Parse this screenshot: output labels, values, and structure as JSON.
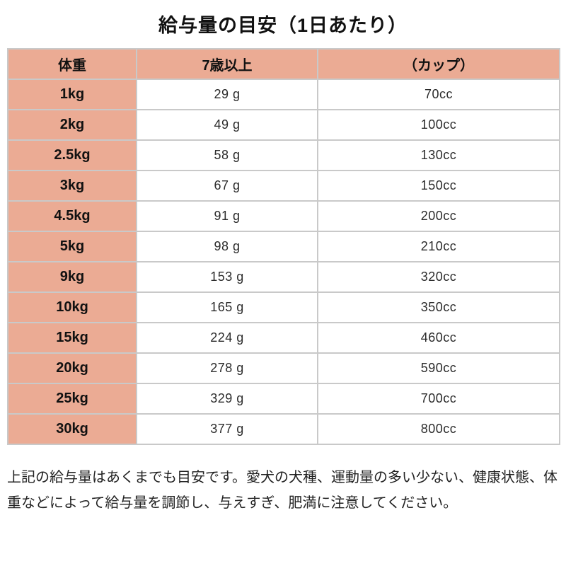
{
  "title": "給与量の目安（1日あたり）",
  "table": {
    "headers": [
      "体重",
      "7歳以上",
      "（カップ）"
    ],
    "rows": [
      {
        "weight": "1kg",
        "grams": "29 g",
        "cup": "70cc"
      },
      {
        "weight": "2kg",
        "grams": "49 g",
        "cup": "100cc"
      },
      {
        "weight": "2.5kg",
        "grams": "58 g",
        "cup": "130cc"
      },
      {
        "weight": "3kg",
        "grams": "67 g",
        "cup": "150cc"
      },
      {
        "weight": "4.5kg",
        "grams": "91 g",
        "cup": "200cc"
      },
      {
        "weight": "5kg",
        "grams": "98 g",
        "cup": "210cc"
      },
      {
        "weight": "9kg",
        "grams": "153 g",
        "cup": "320cc"
      },
      {
        "weight": "10kg",
        "grams": "165 g",
        "cup": "350cc"
      },
      {
        "weight": "15kg",
        "grams": "224 g",
        "cup": "460cc"
      },
      {
        "weight": "20kg",
        "grams": "278 g",
        "cup": "590cc"
      },
      {
        "weight": "25kg",
        "grams": "329 g",
        "cup": "700cc"
      },
      {
        "weight": "30kg",
        "grams": "377 g",
        "cup": "800cc"
      }
    ]
  },
  "note": "上記の給与量はあくまでも目安です。愛犬の犬種、運動量の多い少ない、健康状態、体重などによって給与量を調節し、与えすぎ、肥満に注意してください。",
  "colors": {
    "header_bg": "#ebab94",
    "border": "#c9c9c9",
    "title_text": "#111111",
    "value_text": "#2b2b2b"
  }
}
